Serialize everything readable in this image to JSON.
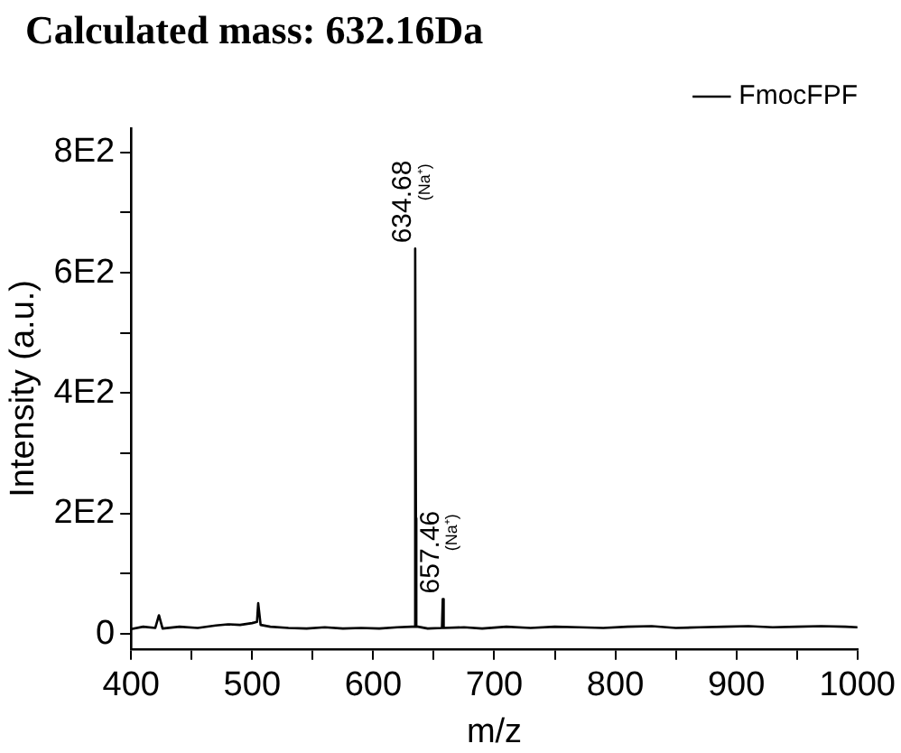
{
  "chart_data": {
    "type": "line",
    "title": "Calculated mass: 632.16Da",
    "xlabel": "m/z",
    "ylabel": "Intensity (a.u.)",
    "x": [
      400,
      410,
      420,
      423,
      426,
      440,
      455,
      470,
      480,
      490,
      500,
      504,
      505,
      507,
      515,
      530,
      545,
      560,
      575,
      590,
      605,
      620,
      632,
      634.4,
      634.68,
      635.3,
      635.6,
      637,
      645,
      656.8,
      657.46,
      658.2,
      675,
      690,
      710,
      730,
      750,
      770,
      790,
      810,
      830,
      850,
      870,
      890,
      910,
      930,
      950,
      970,
      990,
      1000
    ],
    "series": [
      {
        "name": "FmocFPF",
        "color": "#000000",
        "values": [
          8,
          12,
          10,
          31,
          9,
          12,
          10,
          14,
          16,
          15,
          18,
          20,
          51,
          15,
          12,
          10,
          9,
          11,
          9,
          10,
          9,
          11,
          12,
          12,
          640,
          192,
          12,
          12,
          9,
          10,
          58,
          10,
          11,
          9,
          12,
          10,
          12,
          11,
          10,
          12,
          13,
          10,
          11,
          12,
          13,
          11,
          12,
          13,
          12,
          11
        ]
      }
    ],
    "xlim": [
      400,
      1000
    ],
    "xticks": [
      400,
      {
        "value": 450,
        "label": null
      },
      500,
      {
        "value": 550,
        "label": null
      },
      600,
      {
        "value": 650,
        "label": null
      },
      700,
      {
        "value": 750,
        "label": null
      },
      800,
      {
        "value": 850,
        "label": null
      },
      900,
      {
        "value": 950,
        "label": null
      },
      1000
    ],
    "ylim": [
      -25,
      840
    ],
    "yticks": [
      0,
      {
        "value": 100,
        "label": null
      },
      {
        "value": 200,
        "label": "2E2"
      },
      {
        "value": 300,
        "label": null
      },
      {
        "value": 400,
        "label": "4E2"
      },
      {
        "value": 500,
        "label": null
      },
      {
        "value": 600,
        "label": "6E2"
      },
      {
        "value": 700,
        "label": null
      },
      {
        "value": 800,
        "label": "8E2"
      }
    ],
    "annotations": [
      {
        "text": "634.68 (Na⁺)",
        "x": 634.68,
        "y": 640
      },
      {
        "text": "657.46 (Na⁺)",
        "x": 657.46,
        "y": 58
      }
    ],
    "legend": "top right",
    "grid": false,
    "marker": "none",
    "line_style": "solid"
  }
}
